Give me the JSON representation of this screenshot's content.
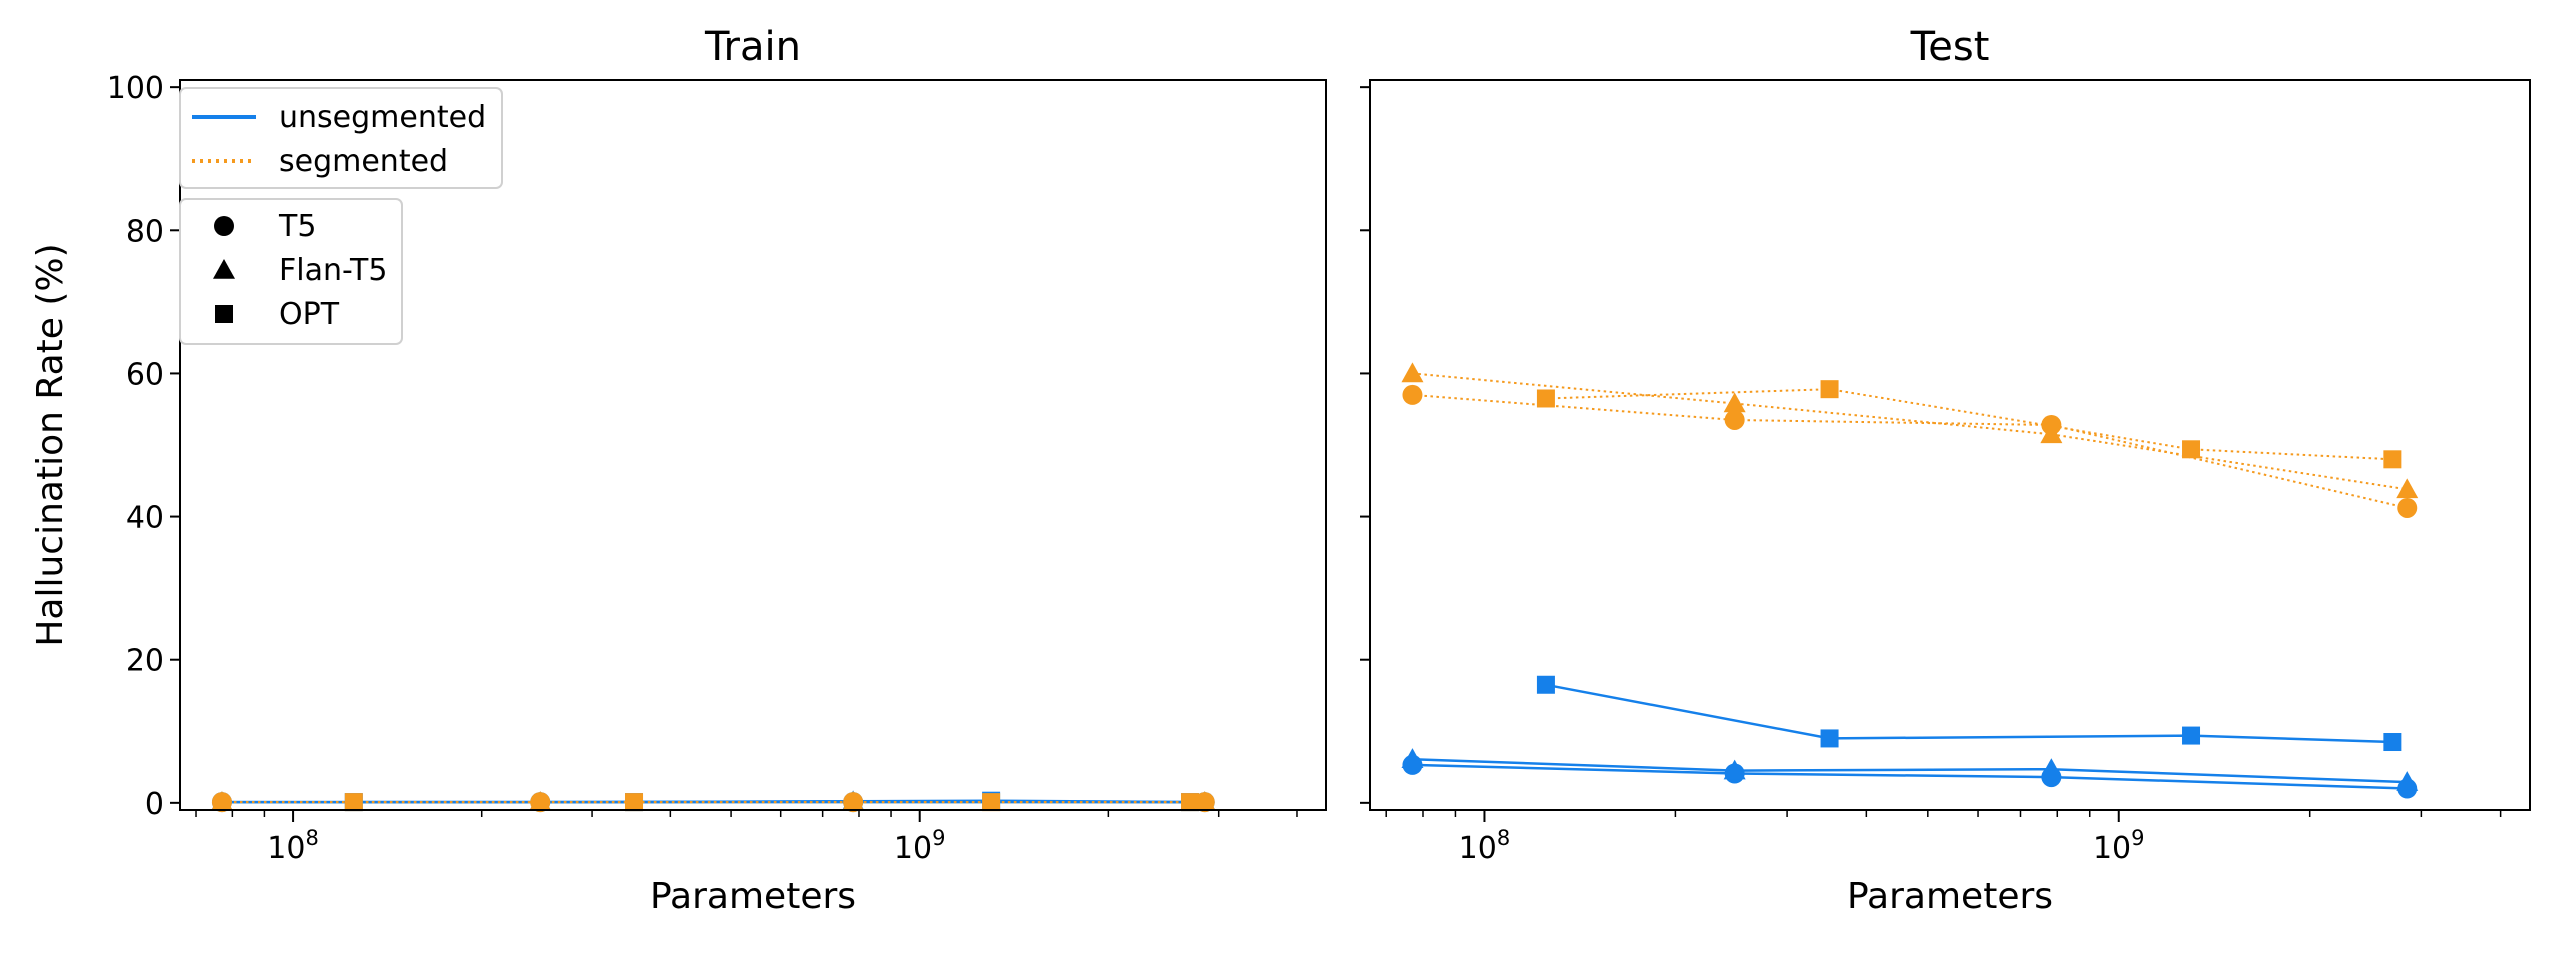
{
  "chart_data": [
    {
      "type": "line",
      "title": "Train",
      "xlabel": "Parameters",
      "ylabel": "Hallucination Rate (%)",
      "xscale": "log",
      "xlim": [
        66000000,
        4450000000
      ],
      "ylim": [
        -1,
        101
      ],
      "yticks": [
        0,
        20,
        40,
        60,
        80,
        100
      ],
      "xticks": [
        "10^8",
        "10^9"
      ],
      "legend": {
        "placement": "top-left",
        "style_entries": [
          {
            "label": "unsegmented",
            "color": "#1580ea",
            "line": "solid"
          },
          {
            "label": "segmented",
            "color": "#f59a1e",
            "line": "dotted"
          }
        ],
        "marker_entries": [
          {
            "label": "T5",
            "marker": "circle"
          },
          {
            "label": "Flan-T5",
            "marker": "triangle"
          },
          {
            "label": "OPT",
            "marker": "square"
          }
        ]
      },
      "series": [
        {
          "model": "T5",
          "style": "unsegmented",
          "marker": "circle",
          "color": "#1580ea",
          "x": [
            77000000,
            248000000,
            783000000,
            2850000000
          ],
          "y": [
            0.1,
            0.1,
            0.1,
            0.1
          ]
        },
        {
          "model": "Flan-T5",
          "style": "unsegmented",
          "marker": "triangle",
          "color": "#1580ea",
          "x": [
            77000000,
            248000000,
            783000000,
            2850000000
          ],
          "y": [
            0.1,
            0.1,
            0.2,
            0.1
          ]
        },
        {
          "model": "OPT",
          "style": "unsegmented",
          "marker": "square",
          "color": "#1580ea",
          "x": [
            125000000,
            350000000,
            1300000000,
            2700000000
          ],
          "y": [
            0.1,
            0.1,
            0.3,
            0.1
          ]
        },
        {
          "model": "T5",
          "style": "segmented",
          "marker": "circle",
          "color": "#f59a1e",
          "x": [
            77000000,
            248000000,
            783000000,
            2850000000
          ],
          "y": [
            0.1,
            0.1,
            0.1,
            0.1
          ]
        },
        {
          "model": "Flan-T5",
          "style": "segmented",
          "marker": "triangle",
          "color": "#f59a1e",
          "x": [
            77000000,
            248000000,
            783000000,
            2850000000
          ],
          "y": [
            0.1,
            0.1,
            0.1,
            0.1
          ]
        },
        {
          "model": "OPT",
          "style": "segmented",
          "marker": "square",
          "color": "#f59a1e",
          "x": [
            125000000,
            350000000,
            1300000000,
            2700000000
          ],
          "y": [
            0.1,
            0.1,
            0.1,
            0.1
          ]
        }
      ]
    },
    {
      "type": "line",
      "title": "Test",
      "xlabel": "Parameters",
      "ylabel": "",
      "xscale": "log",
      "xlim": [
        66000000,
        4450000000
      ],
      "ylim": [
        -1,
        101
      ],
      "yticks": [
        0,
        20,
        40,
        60,
        80,
        100
      ],
      "xticks": [
        "10^8",
        "10^9"
      ],
      "series": [
        {
          "model": "T5",
          "style": "unsegmented",
          "marker": "circle",
          "color": "#1580ea",
          "x": [
            77000000,
            248000000,
            783000000,
            2850000000
          ],
          "y": [
            5.3,
            4.1,
            3.6,
            2.0
          ]
        },
        {
          "model": "Flan-T5",
          "style": "unsegmented",
          "marker": "triangle",
          "color": "#1580ea",
          "x": [
            77000000,
            248000000,
            783000000,
            2850000000
          ],
          "y": [
            6.1,
            4.5,
            4.7,
            2.9
          ]
        },
        {
          "model": "OPT",
          "style": "unsegmented",
          "marker": "square",
          "color": "#1580ea",
          "x": [
            125000000,
            350000000,
            1300000000,
            2700000000
          ],
          "y": [
            16.5,
            9.0,
            9.4,
            8.5
          ]
        },
        {
          "model": "T5",
          "style": "segmented",
          "marker": "circle",
          "color": "#f59a1e",
          "x": [
            77000000,
            248000000,
            783000000,
            2850000000
          ],
          "y": [
            57.0,
            53.5,
            52.8,
            41.2
          ]
        },
        {
          "model": "Flan-T5",
          "style": "segmented",
          "marker": "triangle",
          "color": "#f59a1e",
          "x": [
            77000000,
            248000000,
            783000000,
            2850000000
          ],
          "y": [
            60.0,
            55.8,
            51.5,
            43.8
          ]
        },
        {
          "model": "OPT",
          "style": "segmented",
          "marker": "square",
          "color": "#f59a1e",
          "x": [
            125000000,
            350000000,
            1300000000,
            2700000000
          ],
          "y": [
            56.5,
            57.8,
            49.4,
            48.0
          ]
        }
      ]
    }
  ]
}
